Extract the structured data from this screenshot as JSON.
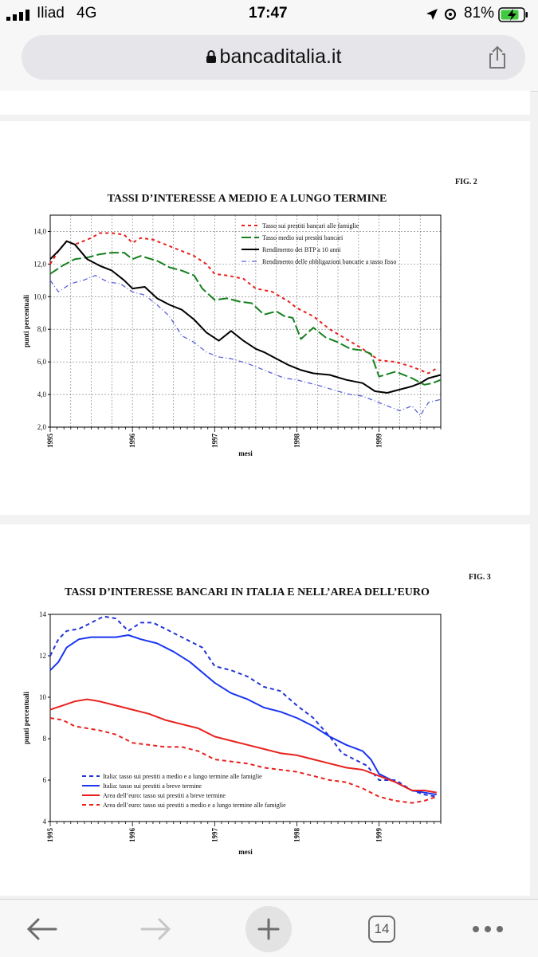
{
  "status_bar": {
    "carrier": "Iliad",
    "network": "4G",
    "time": "17:47",
    "battery": "81%"
  },
  "browser": {
    "url": "bancaditalia.it",
    "tab_count": "14"
  },
  "figures": [
    {
      "fig_label": "FIG. 2",
      "chart_data": {
        "type": "line",
        "title": "TASSI D’INTERESSE A MEDIO E A LUNGO TERMINE",
        "xlabel": "mesi",
        "ylabel": "punti percentuali",
        "ylim": [
          2.0,
          15.0
        ],
        "yticks": [
          "2,0",
          "4,0",
          "6,0",
          "8,0",
          "10,0",
          "12,0",
          "14,0"
        ],
        "ytick_values": [
          2,
          4,
          6,
          8,
          10,
          12,
          14
        ],
        "x_start": 1995.0,
        "x_end": 1999.75,
        "xticks": [
          "1995",
          "1996",
          "1997",
          "1998",
          "1999"
        ],
        "xtick_values": [
          1995,
          1996,
          1997,
          1998,
          1999
        ],
        "grid": true,
        "legend_position": "top-right",
        "series": [
          {
            "name": "Tasso sui prestiti bancari alle famiglie",
            "color": "#e8211d",
            "dash": "4,4",
            "width": 2,
            "x": [
              1995.0,
              1995.1,
              1995.2,
              1995.3,
              1995.5,
              1995.6,
              1995.75,
              1995.9,
              1996.0,
              1996.1,
              1996.25,
              1996.5,
              1996.75,
              1996.9,
              1997.0,
              1997.15,
              1997.35,
              1997.5,
              1997.7,
              1997.9,
              1998.0,
              1998.2,
              1998.4,
              1998.6,
              1998.8,
              1999.0,
              1999.2,
              1999.4,
              1999.5,
              1999.6,
              1999.7
            ],
            "y": [
              12.0,
              12.8,
              13.4,
              13.2,
              13.6,
              13.9,
              13.9,
              13.8,
              13.3,
              13.6,
              13.5,
              13.0,
              12.5,
              12.0,
              11.4,
              11.3,
              11.1,
              10.5,
              10.3,
              9.7,
              9.3,
              8.8,
              8.0,
              7.4,
              6.8,
              6.1,
              6.0,
              5.7,
              5.5,
              5.3,
              5.6
            ]
          },
          {
            "name": "Tasso medio sui prestiti bancari",
            "color": "#15801e",
            "dash": "12,4",
            "width": 2,
            "x": [
              1995.0,
              1995.15,
              1995.3,
              1995.45,
              1995.6,
              1995.75,
              1995.9,
              1996.0,
              1996.1,
              1996.3,
              1996.45,
              1996.6,
              1996.75,
              1996.85,
              1997.0,
              1997.15,
              1997.3,
              1997.45,
              1997.6,
              1997.75,
              1997.85,
              1997.95,
              1998.05,
              1998.2,
              1998.35,
              1998.5,
              1998.65,
              1998.8,
              1998.9,
              1999.0,
              1999.2,
              1999.4,
              1999.55,
              1999.65,
              1999.75
            ],
            "y": [
              11.4,
              11.9,
              12.3,
              12.4,
              12.6,
              12.7,
              12.7,
              12.3,
              12.5,
              12.2,
              11.8,
              11.6,
              11.3,
              10.5,
              9.8,
              9.9,
              9.7,
              9.6,
              8.9,
              9.1,
              8.8,
              8.7,
              7.4,
              8.1,
              7.5,
              7.2,
              6.8,
              6.7,
              6.5,
              5.1,
              5.4,
              5.0,
              4.6,
              4.7,
              4.9
            ]
          },
          {
            "name": "Rendimento dei BTP a 10 anni",
            "color": "#000000",
            "dash": "",
            "width": 2,
            "x": [
              1995.0,
              1995.1,
              1995.2,
              1995.3,
              1995.45,
              1995.6,
              1995.75,
              1995.9,
              1996.0,
              1996.15,
              1996.3,
              1996.45,
              1996.6,
              1996.75,
              1996.9,
              1997.05,
              1997.2,
              1997.35,
              1997.5,
              1997.6,
              1997.75,
              1997.9,
              1998.05,
              1998.2,
              1998.4,
              1998.6,
              1998.8,
              1998.95,
              1999.1,
              1999.25,
              1999.4,
              1999.5,
              1999.6,
              1999.75
            ],
            "y": [
              12.3,
              12.8,
              13.4,
              13.2,
              12.3,
              11.9,
              11.6,
              11.0,
              10.5,
              10.6,
              9.9,
              9.5,
              9.2,
              8.6,
              7.8,
              7.3,
              7.9,
              7.3,
              6.8,
              6.6,
              6.2,
              5.8,
              5.5,
              5.3,
              5.2,
              4.9,
              4.7,
              4.2,
              4.1,
              4.3,
              4.5,
              4.7,
              5.0,
              5.2
            ]
          },
          {
            "name": "Rendimento delle obbligazioni bancarie a tasso fisso",
            "color": "#5b63d8",
            "dash": "6,3,1,3",
            "width": 1.3,
            "x": [
              1995.0,
              1995.1,
              1995.25,
              1995.4,
              1995.55,
              1995.7,
              1995.85,
              1996.0,
              1996.15,
              1996.3,
              1996.45,
              1996.6,
              1996.75,
              1996.9,
              1997.05,
              1997.2,
              1997.4,
              1997.55,
              1997.7,
              1997.85,
              1998.0,
              1998.15,
              1998.3,
              1998.5,
              1998.65,
              1998.8,
              1998.95,
              1999.1,
              1999.25,
              1999.4,
              1999.5,
              1999.6,
              1999.75
            ],
            "y": [
              11.0,
              10.3,
              10.8,
              11.0,
              11.3,
              10.9,
              10.8,
              10.3,
              10.1,
              9.5,
              8.8,
              7.6,
              7.2,
              6.6,
              6.3,
              6.2,
              5.9,
              5.6,
              5.3,
              5.0,
              4.9,
              4.7,
              4.5,
              4.2,
              4.0,
              3.9,
              3.6,
              3.3,
              3.0,
              3.3,
              2.7,
              3.5,
              3.7
            ]
          }
        ]
      }
    },
    {
      "fig_label": "FIG. 3",
      "chart_data": {
        "type": "line",
        "title": "TASSI D’INTERESSE BANCARI IN ITALIA E NELL’AREA DELL’EURO",
        "xlabel": "mesi",
        "ylabel": "punti percentuali",
        "ylim": [
          4,
          14
        ],
        "yticks": [
          "4",
          "6",
          "8",
          "10",
          "12",
          "14"
        ],
        "ytick_values": [
          4,
          6,
          8,
          10,
          12,
          14
        ],
        "x_start": 1995.0,
        "x_end": 1999.75,
        "xticks": [
          "1995",
          "1996",
          "1997",
          "1998",
          "1999"
        ],
        "xtick_values": [
          1995,
          1996,
          1997,
          1998,
          1999
        ],
        "grid": false,
        "legend_position": "bottom-left",
        "series": [
          {
            "name": "Italia: tasso sui prestiti  a medio e a lungo termine alle famiglie",
            "color": "#2234d6",
            "dash": "5,4",
            "width": 2,
            "x": [
              1995.0,
              1995.1,
              1995.2,
              1995.35,
              1995.5,
              1995.65,
              1995.8,
              1995.95,
              1996.1,
              1996.25,
              1996.4,
              1996.55,
              1996.7,
              1996.85,
              1997.0,
              1997.2,
              1997.4,
              1997.6,
              1997.8,
              1998.0,
              1998.2,
              1998.4,
              1998.55,
              1998.7,
              1998.85,
              1999.0,
              1999.2,
              1999.4,
              1999.55,
              1999.7
            ],
            "y": [
              12.0,
              12.8,
              13.2,
              13.3,
              13.6,
              13.9,
              13.8,
              13.2,
              13.6,
              13.6,
              13.3,
              13.0,
              12.7,
              12.4,
              11.5,
              11.3,
              11.0,
              10.5,
              10.3,
              9.6,
              9.0,
              8.1,
              7.3,
              7.0,
              6.7,
              6.0,
              6.0,
              5.5,
              5.3,
              5.2
            ]
          },
          {
            "name": "Italia: tasso sui prestiti a breve termine",
            "color": "#1b35f0",
            "dash": "",
            "width": 2,
            "x": [
              1995.0,
              1995.1,
              1995.2,
              1995.35,
              1995.5,
              1995.65,
              1995.8,
              1995.95,
              1996.1,
              1996.3,
              1996.5,
              1996.7,
              1996.85,
              1997.0,
              1997.2,
              1997.4,
              1997.6,
              1997.8,
              1998.0,
              1998.2,
              1998.4,
              1998.6,
              1998.8,
              1998.9,
              1999.0,
              1999.2,
              1999.4,
              1999.55,
              1999.7
            ],
            "y": [
              11.3,
              11.7,
              12.4,
              12.8,
              12.9,
              12.9,
              12.9,
              13.0,
              12.8,
              12.6,
              12.2,
              11.7,
              11.2,
              10.7,
              10.2,
              9.9,
              9.5,
              9.3,
              9.0,
              8.6,
              8.1,
              7.7,
              7.4,
              7.0,
              6.3,
              5.9,
              5.5,
              5.4,
              5.3
            ]
          },
          {
            "name": "Area dell’euro: tasso sui prestiti a breve termine",
            "color": "#e8211d",
            "dash": "",
            "width": 2,
            "x": [
              1995.0,
              1995.15,
              1995.3,
              1995.45,
              1995.6,
              1995.8,
              1996.0,
              1996.2,
              1996.4,
              1996.6,
              1996.8,
              1997.0,
              1997.2,
              1997.4,
              1997.6,
              1997.8,
              1998.0,
              1998.2,
              1998.4,
              1998.6,
              1998.8,
              1999.0,
              1999.2,
              1999.4,
              1999.55,
              1999.7
            ],
            "y": [
              9.4,
              9.6,
              9.8,
              9.9,
              9.8,
              9.6,
              9.4,
              9.2,
              8.9,
              8.7,
              8.5,
              8.1,
              7.9,
              7.7,
              7.5,
              7.3,
              7.2,
              7.0,
              6.8,
              6.6,
              6.5,
              6.2,
              5.9,
              5.5,
              5.5,
              5.4
            ]
          },
          {
            "name": "Area dell’euro: tasso sui prestiti  a medio e a lungo termine alle famiglie",
            "color": "#e8211d",
            "dash": "5,4",
            "width": 2,
            "x": [
              1995.0,
              1995.15,
              1995.3,
              1995.45,
              1995.6,
              1995.8,
              1996.0,
              1996.2,
              1996.4,
              1996.6,
              1996.8,
              1997.0,
              1997.2,
              1997.4,
              1997.6,
              1997.8,
              1998.0,
              1998.2,
              1998.4,
              1998.6,
              1998.8,
              1999.0,
              1999.2,
              1999.4,
              1999.55,
              1999.7
            ],
            "y": [
              9.0,
              8.9,
              8.6,
              8.5,
              8.4,
              8.2,
              7.8,
              7.7,
              7.6,
              7.6,
              7.4,
              7.0,
              6.9,
              6.8,
              6.6,
              6.5,
              6.4,
              6.2,
              6.0,
              5.9,
              5.6,
              5.2,
              5.0,
              4.9,
              5.0,
              5.2
            ]
          }
        ]
      }
    }
  ]
}
